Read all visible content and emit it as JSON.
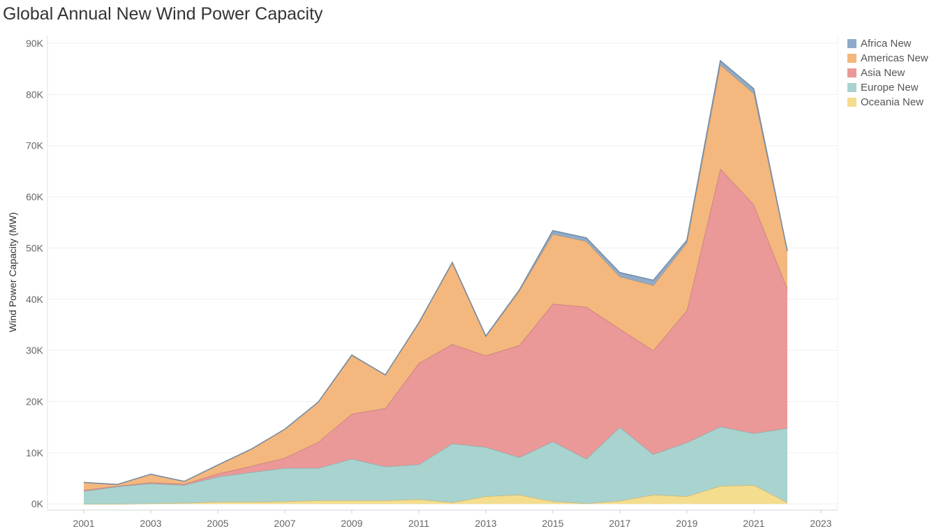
{
  "chart_data": {
    "type": "area",
    "stacked": true,
    "title": "Global Annual New Wind Power Capacity",
    "xlabel": "",
    "ylabel": "Wind Power Capacity (MW)",
    "x": [
      2001,
      2002,
      2003,
      2004,
      2005,
      2006,
      2007,
      2008,
      2009,
      2010,
      2011,
      2012,
      2013,
      2014,
      2015,
      2016,
      2017,
      2018,
      2019,
      2020,
      2021,
      2022
    ],
    "xticks": [
      "2001",
      "2003",
      "2005",
      "2007",
      "2009",
      "2011",
      "2013",
      "2015",
      "2017",
      "2019",
      "2021",
      "2023"
    ],
    "xlim": [
      2001,
      2023
    ],
    "yticks": [
      "0K",
      "10K",
      "20K",
      "30K",
      "40K",
      "50K",
      "60K",
      "70K",
      "80K",
      "90K"
    ],
    "ylim": [
      -1200,
      90000
    ],
    "grid": true,
    "legend_position": "top-right",
    "series": [
      {
        "name": "Oceania New",
        "color": "#f4dd8f",
        "values": [
          0,
          0,
          100,
          200,
          400,
          400,
          500,
          700,
          700,
          700,
          900,
          300,
          1500,
          1800,
          500,
          100,
          600,
          1800,
          1500,
          3500,
          3700,
          300
        ]
      },
      {
        "name": "Europe New",
        "color": "#a9d3cf",
        "values": [
          2500,
          3400,
          3900,
          3500,
          4900,
          5800,
          6500,
          6300,
          8100,
          6600,
          6800,
          11500,
          9600,
          7300,
          11700,
          8700,
          14400,
          7900,
          10500,
          11600,
          10100,
          14500
        ]
      },
      {
        "name": "Asia New",
        "color": "#eb9898",
        "values": [
          200,
          100,
          200,
          200,
          600,
          1200,
          2000,
          5100,
          8800,
          11400,
          19800,
          19400,
          17900,
          21900,
          26900,
          29700,
          19200,
          20300,
          25800,
          50400,
          44700,
          27300
        ]
      },
      {
        "name": "Americas New",
        "color": "#f4b87e",
        "values": [
          1500,
          300,
          1600,
          500,
          1700,
          3300,
          5600,
          7800,
          11400,
          6500,
          7800,
          15900,
          3700,
          10600,
          13600,
          12800,
          10200,
          12700,
          13200,
          20300,
          21700,
          7300
        ]
      },
      {
        "name": "Africa New",
        "color": "#8fabc9",
        "values": [
          0,
          0,
          0,
          0,
          0,
          0,
          0,
          0,
          100,
          0,
          100,
          100,
          100,
          200,
          700,
          700,
          800,
          1000,
          500,
          800,
          900,
          0
        ]
      }
    ]
  }
}
